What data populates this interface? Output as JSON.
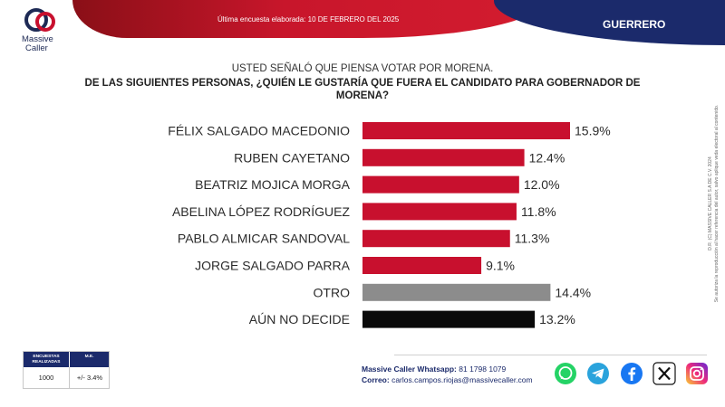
{
  "header": {
    "banner_text": "Última encuesta elaborada: 10 DE FEBRERO DEL 2025",
    "state": "GUERRERO",
    "logo_line1": "Massive",
    "logo_line2": "Caller"
  },
  "question": {
    "line1": "USTED SEÑALÓ QUE PIENSA VOTAR POR MORENA.",
    "line2": "DE LAS SIGUIENTES PERSONAS, ¿QUIÉN LE GUSTARÍA QUE FUERA EL CANDIDATO PARA GOBERNADOR DE",
    "line3": "MORENA?"
  },
  "legal_text": {
    "line1": "D.R. (C) MASSIVE CALLER S.A DE C.V. 2024",
    "line2": "Se autoriza la reproducción al hacer referencia del autor, salvo aplique veda electoral al contenido."
  },
  "colors": {
    "red": "#c8102e",
    "gray": "#8c8c8c",
    "black": "#0a0a0a",
    "navy": "#1b2a6b"
  },
  "chart_data": {
    "type": "bar",
    "orientation": "horizontal",
    "title": "DE LAS SIGUIENTES PERSONAS, ¿QUIÉN LE GUSTARÍA QUE FUERA EL CANDIDATO PARA GOBERNADOR DE MORENA?",
    "categories": [
      "FÉLIX SALGADO MACEDONIO",
      "RUBEN CAYETANO",
      "BEATRIZ MOJICA MORGA",
      "ABELINA LÓPEZ RODRÍGUEZ",
      "PABLO ALMICAR SANDOVAL",
      "JORGE SALGADO PARRA",
      "OTRO",
      "AÚN NO DECIDE"
    ],
    "values": [
      15.9,
      12.4,
      12.0,
      11.8,
      11.3,
      9.1,
      14.4,
      13.2
    ],
    "labels": [
      "15.9%",
      "12.4%",
      "12.0%",
      "11.8%",
      "11.3%",
      "9.1%",
      "14.4%",
      "13.2%"
    ],
    "bar_colors": [
      "#c8102e",
      "#c8102e",
      "#c8102e",
      "#c8102e",
      "#c8102e",
      "#c8102e",
      "#8c8c8c",
      "#0a0a0a"
    ],
    "unit": "%",
    "xlim": [
      0,
      16
    ]
  },
  "survey": {
    "col1_header_line1": "ENCUESTAS",
    "col1_header_line2": "REALIZADAS",
    "col2_header": "M.E.",
    "surveys": "1000",
    "margin": "+/- 3.4%"
  },
  "contact": {
    "whatsapp_label": "Massive Caller Whatsapp:",
    "whatsapp_value": "81 1798 1079",
    "email_label": "Correo:",
    "email_value": "carlos.campos.riojas@massivecaller.com"
  },
  "social": [
    "whatsapp-icon",
    "telegram-icon",
    "facebook-icon",
    "x-icon",
    "instagram-icon"
  ]
}
